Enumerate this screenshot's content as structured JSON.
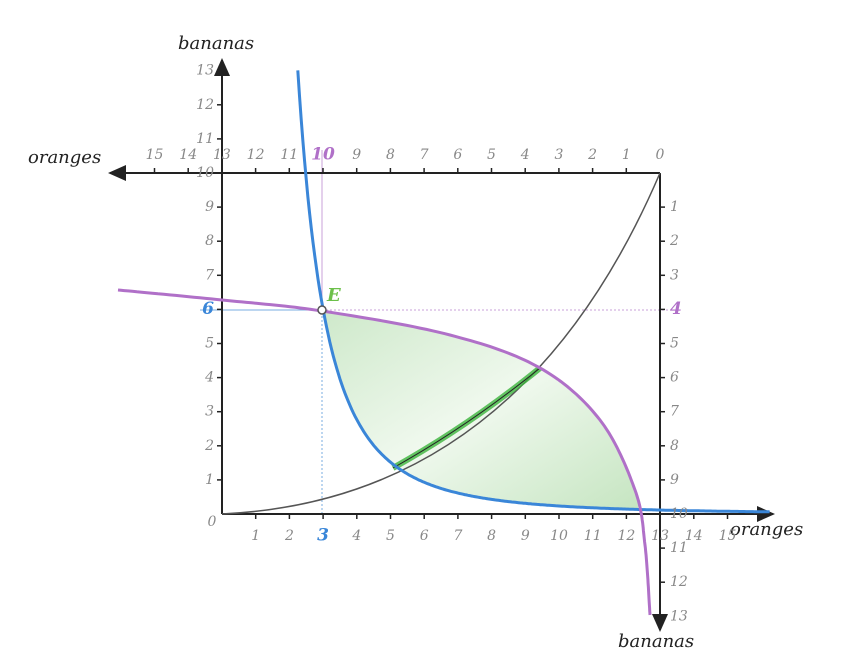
{
  "axes": {
    "bottom": {
      "label": "oranges",
      "origin": 0,
      "ticks": [
        1,
        2,
        3,
        4,
        5,
        6,
        7,
        8,
        9,
        10,
        11,
        12,
        13,
        14,
        15
      ]
    },
    "left": {
      "label": "bananas",
      "ticks": [
        1,
        2,
        3,
        4,
        5,
        6,
        7,
        8,
        9,
        10,
        11,
        12,
        13
      ]
    },
    "top": {
      "label": "oranges",
      "ticks": [
        0,
        1,
        2,
        3,
        4,
        5,
        6,
        7,
        8,
        9,
        10,
        11,
        12,
        13,
        14,
        15
      ]
    },
    "right": {
      "label": "bananas",
      "ticks": [
        1,
        2,
        3,
        4,
        5,
        6,
        7,
        8,
        9,
        10,
        11,
        12,
        13
      ]
    }
  },
  "point_label": "E"
}
